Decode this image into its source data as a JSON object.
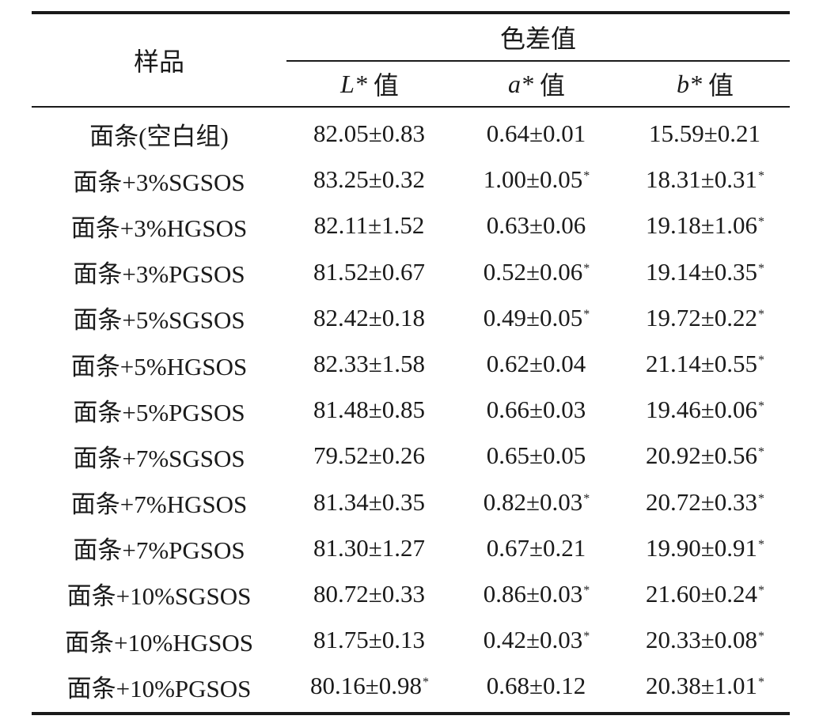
{
  "table": {
    "header": {
      "sample": "样品",
      "group": "色差值",
      "columns": [
        {
          "var": "L*",
          "suffix": " 值"
        },
        {
          "var": "a*",
          "suffix": " 值"
        },
        {
          "var": "b*",
          "suffix": " 值"
        }
      ]
    },
    "rows": [
      {
        "sample": "面条(空白组)",
        "L": "82.05±0.83",
        "L_sig": "",
        "a": "0.64±0.01",
        "a_sig": "",
        "b": "15.59±0.21",
        "b_sig": ""
      },
      {
        "sample": "面条+3%SGSOS",
        "L": "83.25±0.32",
        "L_sig": "",
        "a": "1.00±0.05",
        "a_sig": "*",
        "b": "18.31±0.31",
        "b_sig": "*"
      },
      {
        "sample": "面条+3%HGSOS",
        "L": "82.11±1.52",
        "L_sig": "",
        "a": "0.63±0.06",
        "a_sig": "",
        "b": "19.18±1.06",
        "b_sig": "*"
      },
      {
        "sample": "面条+3%PGSOS",
        "L": "81.52±0.67",
        "L_sig": "",
        "a": "0.52±0.06",
        "a_sig": "*",
        "b": "19.14±0.35",
        "b_sig": "*"
      },
      {
        "sample": "面条+5%SGSOS",
        "L": "82.42±0.18",
        "L_sig": "",
        "a": "0.49±0.05",
        "a_sig": "*",
        "b": "19.72±0.22",
        "b_sig": "*"
      },
      {
        "sample": "面条+5%HGSOS",
        "L": "82.33±1.58",
        "L_sig": "",
        "a": "0.62±0.04",
        "a_sig": "",
        "b": "21.14±0.55",
        "b_sig": "*"
      },
      {
        "sample": "面条+5%PGSOS",
        "L": "81.48±0.85",
        "L_sig": "",
        "a": "0.66±0.03",
        "a_sig": "",
        "b": "19.46±0.06",
        "b_sig": "*"
      },
      {
        "sample": "面条+7%SGSOS",
        "L": "79.52±0.26",
        "L_sig": "",
        "a": "0.65±0.05",
        "a_sig": "",
        "b": "20.92±0.56",
        "b_sig": "*"
      },
      {
        "sample": "面条+7%HGSOS",
        "L": "81.34±0.35",
        "L_sig": "",
        "a": "0.82±0.03",
        "a_sig": "*",
        "b": "20.72±0.33",
        "b_sig": "*"
      },
      {
        "sample": "面条+7%PGSOS",
        "L": "81.30±1.27",
        "L_sig": "",
        "a": "0.67±0.21",
        "a_sig": "",
        "b": "19.90±0.91",
        "b_sig": "*"
      },
      {
        "sample": "面条+10%SGSOS",
        "L": "80.72±0.33",
        "L_sig": "",
        "a": "0.86±0.03",
        "a_sig": "*",
        "b": "21.60±0.24",
        "b_sig": "*"
      },
      {
        "sample": "面条+10%HGSOS",
        "L": "81.75±0.13",
        "L_sig": "",
        "a": "0.42±0.03",
        "a_sig": "*",
        "b": "20.33±0.08",
        "b_sig": "*"
      },
      {
        "sample": "面条+10%PGSOS",
        "L": "80.16±0.98",
        "L_sig": "*",
        "a": "0.68±0.12",
        "a_sig": "",
        "b": "20.38±1.01",
        "b_sig": "*"
      }
    ]
  }
}
